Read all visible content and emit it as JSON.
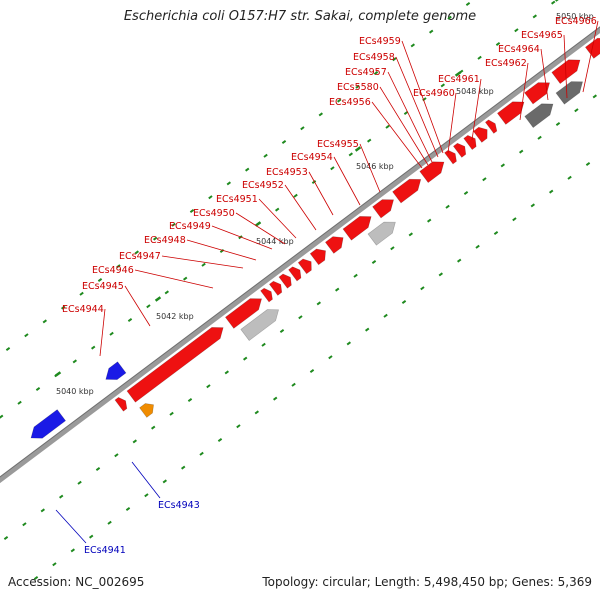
{
  "title": "Escherichia coli O157:H7 str. Sakai, complete genome",
  "footer": {
    "accession": "Accession: NC_002695",
    "topology": "Topology: circular; Length: 5,498,450 bp; Genes: 5,369"
  },
  "colors": {
    "forward_gene": "#ee1111",
    "reverse_gene": "#1a1ae6",
    "forward_label": "#cc0000",
    "reverse_label": "#0000bb",
    "tick": "#1f8a1f",
    "scale_label": "#333333",
    "backbone": "#9a9a9a",
    "orange_feature": "#f08c00",
    "green_feature": "#33cc33",
    "grey_feature": "#bdbdbd",
    "dark_grey_feature": "#6a6a6a",
    "steel_feature": "#3f7fa8"
  },
  "scale_labels": [
    "5040 kbp",
    "5042 kbp",
    "5044 kbp",
    "5046 kbp",
    "5048 kbp",
    "5050 kbp"
  ],
  "forward_gene_labels": [
    "ECs4944",
    "ECs4945",
    "ECs4946",
    "ECs4947",
    "ECs4948",
    "ECs4949",
    "ECs4950",
    "ECs4951",
    "ECs4952",
    "ECs4953",
    "ECs4954",
    "ECs4955",
    "ECs4956",
    "ECs5580",
    "ECs4957",
    "ECs4958",
    "ECs4959",
    "ECs4960",
    "ECs4961",
    "ECs4962",
    "ECs4964",
    "ECs4965",
    "ECs4966"
  ],
  "reverse_gene_labels": [
    "ECs4943",
    "ECs4941"
  ]
}
